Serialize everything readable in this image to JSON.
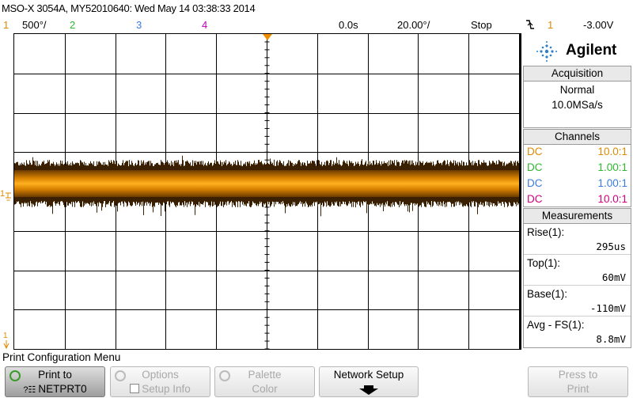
{
  "title": "MSO-X 3054A, MY52010640: Wed May 14 03:38:33 2014",
  "status": {
    "ch1_num": "1",
    "ch1_scale": "500°/",
    "ch2_num": "2",
    "ch3_num": "3",
    "ch4_num": "4",
    "time_delay": "0.0s",
    "time_scale": "20.00°/",
    "run_state": "Stop",
    "trigger_slope_icon": "falling-edge-icon",
    "trigger_source": "1",
    "trigger_level": "-3.00V"
  },
  "panel": {
    "brand": "Agilent",
    "acquisition": {
      "header": "Acquisition",
      "mode": "Normal",
      "rate": "10.0MSa/s"
    },
    "channels": {
      "header": "Channels",
      "items": [
        {
          "coupling": "DC",
          "probe": "10.0:1",
          "color": "#e08a00"
        },
        {
          "coupling": "DC",
          "probe": "1.00:1",
          "color": "#2eb82e"
        },
        {
          "coupling": "DC",
          "probe": "1.00:1",
          "color": "#3b7be0"
        },
        {
          "coupling": "DC",
          "probe": "10.0:1",
          "color": "#d0007a"
        }
      ]
    },
    "measurements": {
      "header": "Measurements",
      "items": [
        {
          "label": "Rise(1):",
          "value": "295us"
        },
        {
          "label": "Top(1):",
          "value": "60mV"
        },
        {
          "label": "Base(1):",
          "value": "-110mV"
        },
        {
          "label": "Avg - FS(1):",
          "value": "8.8mV"
        }
      ]
    }
  },
  "menu": {
    "title": "Print Configuration Menu",
    "keys": [
      {
        "line1": "Print to",
        "line2": "NETPRT0",
        "enabled": true
      },
      {
        "line1": "Options",
        "line2": "Setup Info",
        "enabled": false
      },
      {
        "line1": "Palette",
        "line2": "Color",
        "enabled": false
      },
      {
        "line1": "Network Setup",
        "line2": "",
        "enabled": true
      },
      {
        "line1": "Press to",
        "line2": "Print",
        "enabled": false
      }
    ]
  },
  "trace": {
    "channel": "1",
    "color": "#e08a00",
    "ground_marker": "1"
  }
}
